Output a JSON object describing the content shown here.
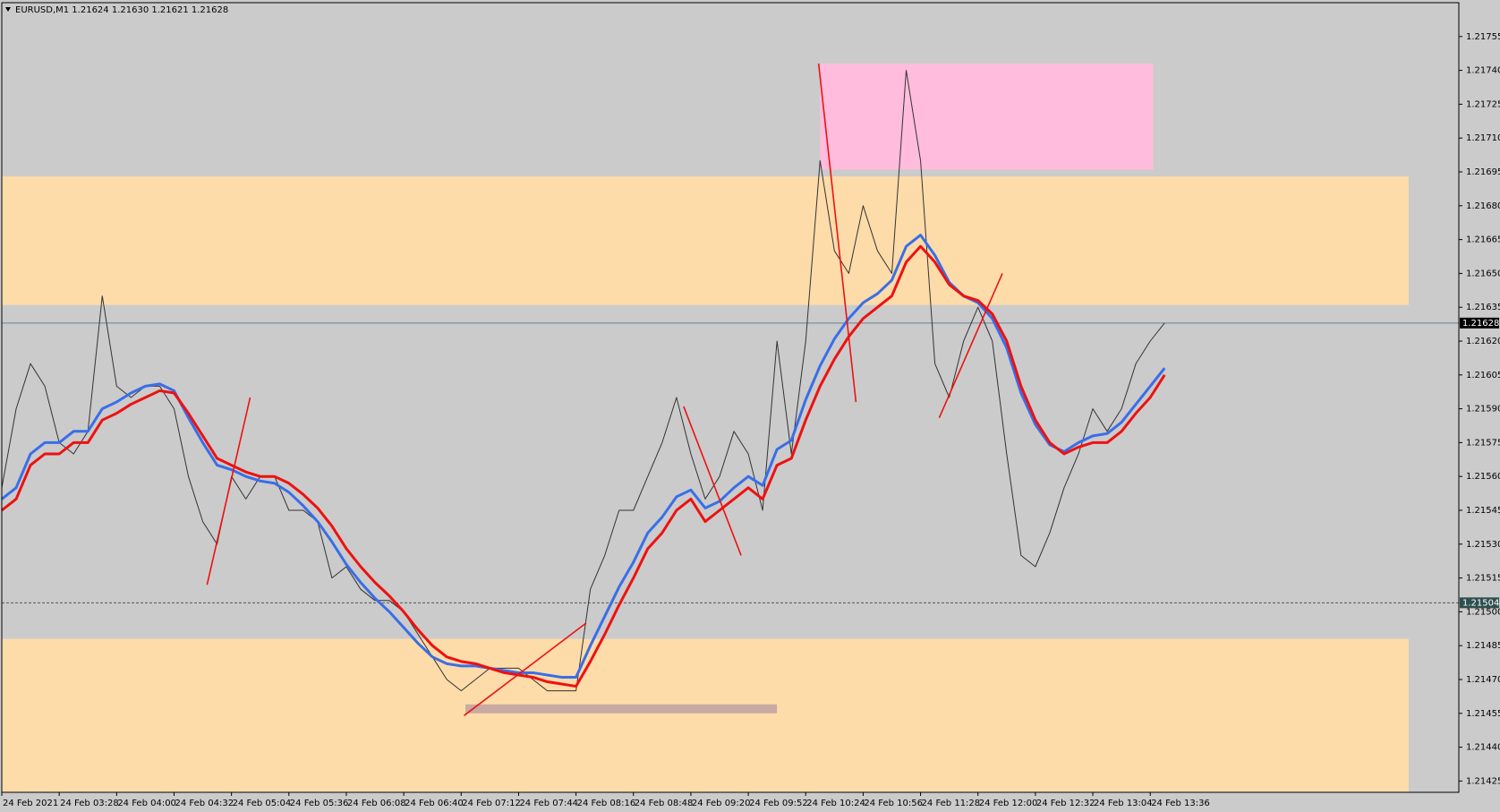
{
  "chart_data": {
    "type": "line",
    "title": "EURUSD,M1  1.21624 1.21630 1.21621 1.21628",
    "categories": [
      "24 Feb 2021",
      null,
      null,
      null,
      "24 Feb 03:28",
      null,
      null,
      null,
      "24 Feb 04:00",
      null,
      null,
      null,
      "24 Feb 04:32",
      null,
      null,
      null,
      "24 Feb 05:04",
      null,
      null,
      null,
      "24 Feb 05:36",
      null,
      null,
      null,
      "24 Feb 06:08",
      null,
      null,
      null,
      "24 Feb 06:40",
      null,
      null,
      null,
      "24 Feb 07:12",
      null,
      null,
      null,
      "24 Feb 07:44",
      null,
      null,
      null,
      "24 Feb 08:16",
      null,
      null,
      null,
      "24 Feb 08:48",
      null,
      null,
      null,
      "24 Feb 09:20",
      null,
      null,
      null,
      "24 Feb 09:52",
      null,
      null,
      null,
      "24 Feb 10:24",
      null,
      null,
      null,
      "24 Feb 10:56",
      null,
      null,
      null,
      "24 Feb 11:28",
      null,
      null,
      null,
      "24 Feb 12:00",
      null,
      null,
      null,
      "24 Feb 12:32",
      null,
      null,
      null,
      "24 Feb 13:04",
      null,
      null,
      null,
      "24 Feb 13:36",
      null
    ],
    "series": [
      {
        "color": "#333333",
        "width": 1,
        "values": [
          1.21555,
          1.2159,
          1.2161,
          1.216,
          1.21575,
          1.2157,
          1.2158,
          1.2164,
          1.216,
          1.21595,
          1.216,
          1.216,
          1.2159,
          1.2156,
          1.2154,
          1.2153,
          1.2156,
          1.2155,
          1.2156,
          1.2156,
          1.21545,
          1.21545,
          1.2154,
          1.21515,
          1.2152,
          1.2151,
          1.21505,
          1.21505,
          1.215,
          1.2149,
          1.2148,
          1.2147,
          1.21465,
          1.2147,
          1.21475,
          1.21475,
          1.21475,
          1.2147,
          1.21465,
          1.21465,
          1.21465,
          1.2151,
          1.21525,
          1.21545,
          1.21545,
          1.2156,
          1.21575,
          1.21595,
          1.2157,
          1.2155,
          1.2156,
          1.2158,
          1.2157,
          1.21545,
          1.2162,
          1.2157,
          1.2162,
          1.217,
          1.2166,
          1.2165,
          1.2168,
          1.2166,
          1.2165,
          1.2174,
          1.217,
          1.2161,
          1.21595,
          1.2162,
          1.21635,
          1.2162,
          1.2157,
          1.21525,
          1.2152,
          1.21535,
          1.21555,
          1.2157,
          1.2159,
          1.2158,
          1.2159,
          1.2161,
          1.2162,
          1.21628
        ]
      },
      {
        "color": "#3a6ee8",
        "width": 3,
        "values": [
          1.2155,
          1.21555,
          1.2157,
          1.21575,
          1.21575,
          1.2158,
          1.2158,
          1.2159,
          1.21593,
          1.21597,
          1.216,
          1.21601,
          1.21598,
          1.21586,
          1.21575,
          1.21565,
          1.21563,
          1.2156,
          1.21558,
          1.21557,
          1.21553,
          1.21547,
          1.2154,
          1.21531,
          1.21521,
          1.21513,
          1.21506,
          1.215,
          1.21493,
          1.21486,
          1.2148,
          1.21477,
          1.21476,
          1.21476,
          1.21475,
          1.21474,
          1.21473,
          1.21473,
          1.21472,
          1.21471,
          1.21471,
          1.21485,
          1.21498,
          1.21511,
          1.21522,
          1.21535,
          1.21542,
          1.21551,
          1.21554,
          1.21546,
          1.21549,
          1.21555,
          1.2156,
          1.21556,
          1.21572,
          1.21576,
          1.21594,
          1.21609,
          1.21621,
          1.2163,
          1.21637,
          1.21641,
          1.21647,
          1.21662,
          1.21667,
          1.21658,
          1.21646,
          1.2164,
          1.21637,
          1.2163,
          1.21617,
          1.21597,
          1.21583,
          1.21574,
          1.21571,
          1.21575,
          1.21578,
          1.21579,
          1.21584,
          1.21592,
          1.216,
          1.21608
        ]
      },
      {
        "color": "#ee1111",
        "width": 3,
        "values": [
          1.21545,
          1.2155,
          1.21565,
          1.2157,
          1.2157,
          1.21575,
          1.21575,
          1.21585,
          1.21588,
          1.21592,
          1.21595,
          1.21598,
          1.21597,
          1.21588,
          1.21578,
          1.21568,
          1.21565,
          1.21562,
          1.2156,
          1.2156,
          1.21557,
          1.21552,
          1.21546,
          1.21538,
          1.21528,
          1.2152,
          1.21513,
          1.21507,
          1.215,
          1.21492,
          1.21485,
          1.2148,
          1.21478,
          1.21477,
          1.21475,
          1.21473,
          1.21472,
          1.21471,
          1.21469,
          1.21468,
          1.21467,
          1.21478,
          1.2149,
          1.21503,
          1.21515,
          1.21528,
          1.21535,
          1.21545,
          1.2155,
          1.2154,
          1.21545,
          1.2155,
          1.21555,
          1.2155,
          1.21565,
          1.21568,
          1.21585,
          1.216,
          1.21612,
          1.21622,
          1.2163,
          1.21635,
          1.2164,
          1.21655,
          1.21662,
          1.21655,
          1.21645,
          1.2164,
          1.21638,
          1.21632,
          1.2162,
          1.216,
          1.21585,
          1.21575,
          1.2157,
          1.21573,
          1.21575,
          1.21575,
          1.2158,
          1.21588,
          1.21595,
          1.21605
        ]
      }
    ],
    "ylim": [
      1.2142,
      1.2177
    ],
    "yticks": [
      1.21425,
      {
        "value": 1.2144,
        "label": "1.21440"
      },
      1.21455,
      {
        "value": 1.2147,
        "label": "1.21470"
      },
      1.21485,
      {
        "value": 1.215,
        "label": "1.21500"
      },
      1.21515,
      {
        "value": 1.2153,
        "label": "1.21530"
      },
      1.21545,
      {
        "value": 1.2156,
        "label": "1.21560"
      },
      1.21575,
      {
        "value": 1.2159,
        "label": "1.21590"
      },
      1.21605,
      {
        "value": 1.2162,
        "label": "1.21620"
      },
      1.21635,
      {
        "value": 1.2165,
        "label": "1.21650"
      },
      1.21665,
      {
        "value": 1.2168,
        "label": "1.21680"
      },
      1.21695,
      {
        "value": 1.2171,
        "label": "1.21710"
      },
      1.21725,
      {
        "value": 1.2174,
        "label": "1.21740"
      },
      1.21755
    ],
    "hlines": [
      {
        "value": 1.21628,
        "style": "solid",
        "color": "#000000"
      },
      {
        "value": 1.21504,
        "style": "dashed",
        "color": "#2f4f4f"
      }
    ],
    "zones": [
      {
        "x": [
          0,
          98
        ],
        "y": [
          1.21636,
          1.21693
        ],
        "color": "#fddcaa"
      },
      {
        "x": [
          0,
          98
        ],
        "y": [
          1.2142,
          1.21488
        ],
        "color": "#fddcaa"
      },
      {
        "x": [
          57,
          80.2
        ],
        "y": [
          1.21696,
          1.21743
        ],
        "color": "#ffbcdc"
      },
      {
        "x": [
          32.3,
          54
        ],
        "y": [
          1.21455,
          1.21459
        ],
        "color": "#c9aaa2"
      }
    ],
    "trendlines": [
      {
        "x": [
          14.3,
          17.3
        ],
        "y": [
          1.21512,
          1.21595
        ]
      },
      {
        "x": [
          32.2,
          40.7
        ],
        "y": [
          1.21454,
          1.21495
        ]
      },
      {
        "x": [
          47.5,
          51.5
        ],
        "y": [
          1.21591,
          1.21525
        ]
      },
      {
        "x": [
          56.9,
          59.5
        ],
        "y": [
          1.21743,
          1.21593
        ]
      },
      {
        "x": [
          65.3,
          69.7
        ],
        "y": [
          1.21586,
          1.2165
        ]
      }
    ],
    "trendline_color": "#ee1111"
  }
}
